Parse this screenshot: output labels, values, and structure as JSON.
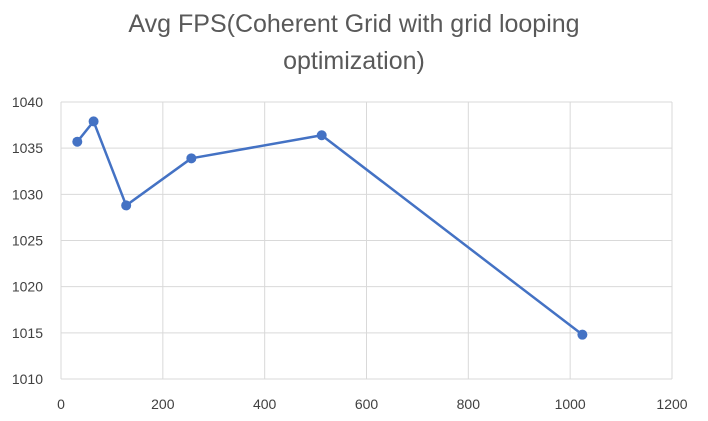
{
  "chart_data": {
    "type": "scatter",
    "title_lines": [
      "Avg FPS(Coherent Grid with grid looping",
      "optimization)"
    ],
    "xlabel": "",
    "ylabel": "",
    "x": [
      32,
      64,
      128,
      256,
      512,
      1024
    ],
    "y": [
      1035.7,
      1037.9,
      1028.8,
      1033.9,
      1036.4,
      1014.8
    ],
    "xlim": [
      0,
      1200
    ],
    "ylim": [
      1010,
      1040
    ],
    "xticks": [
      0,
      200,
      400,
      600,
      800,
      1000,
      1200
    ],
    "yticks": [
      1010,
      1015,
      1020,
      1025,
      1030,
      1035,
      1040
    ],
    "grid": true,
    "series_color": "#4472C4",
    "grid_color": "#d9d9d9"
  }
}
